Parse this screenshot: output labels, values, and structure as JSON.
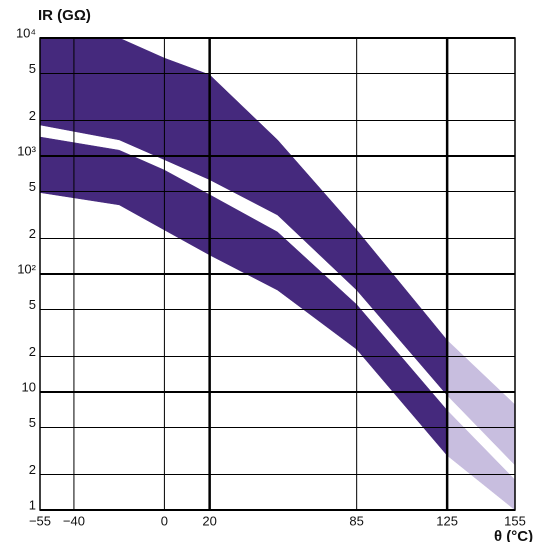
{
  "chart_data": {
    "type": "band",
    "y_label": "IR (GΩ)",
    "x_label": "θ (°C)",
    "log_y": true,
    "grid": true,
    "xlim": [
      -55,
      155
    ],
    "ylim": [
      1,
      10000
    ],
    "xticks": [
      {
        "value": -55,
        "label": "−55"
      },
      {
        "value": -40,
        "label": "−40"
      },
      0,
      20,
      85,
      125,
      155
    ],
    "yticks": [
      1,
      2,
      5,
      10,
      {
        "value": 20,
        "label": "2"
      },
      {
        "value": 50,
        "label": "5"
      },
      {
        "value": 100,
        "label": "10²"
      },
      {
        "value": 200,
        "label": "2"
      },
      {
        "value": 500,
        "label": "5"
      },
      {
        "value": 1000,
        "label": "10³"
      },
      {
        "value": 2000,
        "label": "2"
      },
      {
        "value": 5000,
        "label": "5"
      },
      {
        "value": 10000,
        "label": "10⁴"
      }
    ],
    "series": [
      {
        "color": "#45297d",
        "x": [
          -55,
          -20,
          0,
          20,
          50,
          85,
          125
        ],
        "upper": [
          10000,
          10000,
          6760,
          4880,
          1370,
          236,
          27.5
        ],
        "lower": [
          1830,
          1370,
          930,
          630,
          316,
          73,
          9.4
        ]
      },
      {
        "color": "#c8bedf",
        "x": [
          125,
          155
        ],
        "upper": [
          27.5,
          7.8
        ],
        "lower": [
          9.4,
          2.4
        ]
      },
      {
        "color": "#45297d",
        "x": [
          -55,
          -20,
          0,
          20,
          50,
          85,
          125
        ],
        "upper": [
          1450,
          1120,
          760,
          470,
          227,
          55,
          7
        ],
        "lower": [
          490,
          385,
          236,
          145,
          73,
          23,
          2.9
        ]
      },
      {
        "color": "#c8bedf",
        "x": [
          125,
          155
        ],
        "upper": [
          7,
          1.8
        ],
        "lower": [
          2.9,
          1
        ]
      }
    ]
  }
}
